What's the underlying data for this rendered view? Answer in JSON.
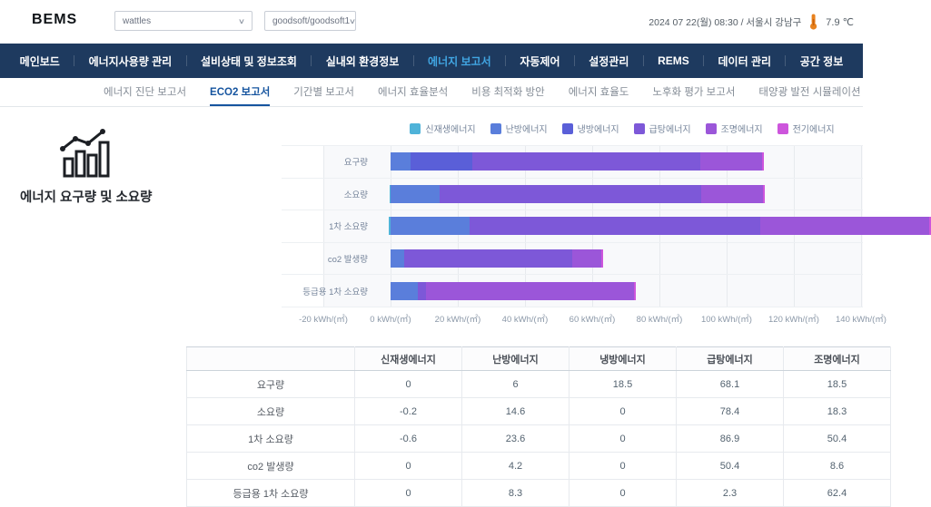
{
  "header": {
    "logo": "BEMS",
    "building_select": {
      "value": "wattles"
    },
    "site_select": {
      "value": "goodsoft/goodsoft1"
    },
    "datetime": "2024 07 22(월) 08:30 / 서울시 강남구",
    "temperature": "7.9 ℃"
  },
  "nav": {
    "active_index": 4,
    "items": [
      "메인보드",
      "에너지사용량 관리",
      "설비상태 및 정보조회",
      "실내외 환경정보",
      "에너지 보고서",
      "자동제어",
      "설정관리",
      "REMS",
      "데이터 관리",
      "공간 정보"
    ]
  },
  "subnav": {
    "active_index": 1,
    "tabs": [
      "에너지 진단 보고서",
      "ECO2 보고서",
      "기간별 보고서",
      "에너지 효율분석",
      "비용 최적화 방안",
      "에너지 효율도",
      "노후화 평가 보고서",
      "태양광 발전 시뮬레이션"
    ]
  },
  "panel": {
    "title": "에너지 요구량 및 소요량"
  },
  "chart_data": {
    "type": "bar",
    "orientation": "horizontal-stacked",
    "categories": [
      "요구량",
      "소요량",
      "1차 소요량",
      "co2 발생량",
      "등급용 1차 소요량"
    ],
    "series": [
      {
        "name": "신재생에너지",
        "color": "#4fb3d9",
        "values": [
          0,
          -0.2,
          -0.6,
          0,
          0
        ]
      },
      {
        "name": "난방에너지",
        "color": "#5a7edb",
        "values": [
          6,
          14.6,
          23.6,
          4.2,
          8.3
        ]
      },
      {
        "name": "냉방에너지",
        "color": "#5a5fd8",
        "values": [
          18.5,
          0,
          0,
          0,
          0
        ]
      },
      {
        "name": "급탕에너지",
        "color": "#7d58d8",
        "values": [
          68.1,
          78.4,
          86.9,
          50.4,
          2.3
        ]
      },
      {
        "name": "조명에너지",
        "color": "#9b56d9",
        "values": [
          18.5,
          18.3,
          50.4,
          8.6,
          62.4
        ]
      },
      {
        "name": "전기에너지",
        "color": "#cd55dc",
        "values": [
          0,
          0,
          0,
          0,
          0
        ]
      }
    ],
    "x_unit": "kWh/(㎡)",
    "x_tick_values": [
      -20,
      0,
      20,
      40,
      60,
      80,
      100,
      120,
      140
    ],
    "x_tick_labels": [
      "-20 kWh/(㎡)",
      "0 kWh/(㎡)",
      "20 kWh/(㎡)",
      "40 kWh/(㎡)",
      "60 kWh/(㎡)",
      "80 kWh/(㎡)",
      "100 kWh/(㎡)",
      "120 kWh/(㎡)",
      "140 kWh/(㎡)"
    ],
    "xlim": [
      -20,
      140
    ],
    "grid": true,
    "legend_position": "top"
  },
  "table": {
    "columns": [
      "",
      "신재생에너지",
      "난방에너지",
      "냉방에너지",
      "급탕에너지",
      "조명에너지"
    ],
    "rows": [
      {
        "label": "요구량",
        "values": [
          "0",
          "6",
          "18.5",
          "68.1",
          "18.5"
        ]
      },
      {
        "label": "소요량",
        "values": [
          "-0.2",
          "14.6",
          "0",
          "78.4",
          "18.3"
        ]
      },
      {
        "label": "1차 소요량",
        "values": [
          "-0.6",
          "23.6",
          "0",
          "86.9",
          "50.4"
        ]
      },
      {
        "label": "co2 발생량",
        "values": [
          "0",
          "4.2",
          "0",
          "50.4",
          "8.6"
        ]
      },
      {
        "label": "등급용 1차 소요량",
        "values": [
          "0",
          "8.3",
          "0",
          "2.3",
          "62.4"
        ]
      }
    ]
  },
  "colors": {
    "nav_bg": "#1e3a5f",
    "nav_active": "#41a6e3",
    "tab_active": "#15549f",
    "thermometer": "#e8821e"
  }
}
